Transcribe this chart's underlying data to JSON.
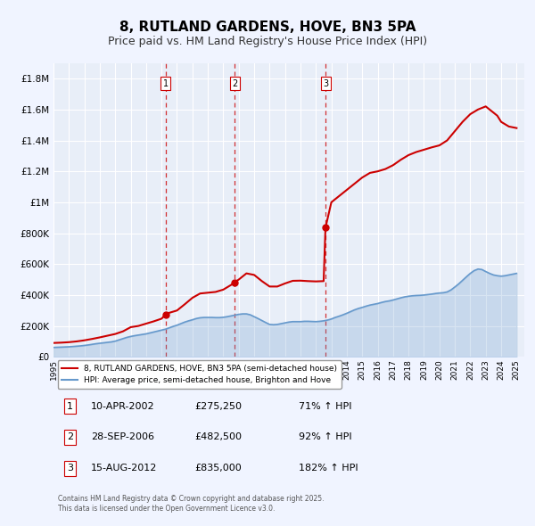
{
  "title": "8, RUTLAND GARDENS, HOVE, BN3 5PA",
  "subtitle": "Price paid vs. HM Land Registry's House Price Index (HPI)",
  "title_fontsize": 11,
  "subtitle_fontsize": 9,
  "bg_color": "#f0f4ff",
  "plot_bg_color": "#e8eef8",
  "grid_color": "#ffffff",
  "ylim": [
    0,
    1900000
  ],
  "xlim_start": 1995.0,
  "xlim_end": 2025.5,
  "ytick_labels": [
    "£0",
    "£200K",
    "£400K",
    "£600K",
    "£800K",
    "£1M",
    "£1.2M",
    "£1.4M",
    "£1.6M",
    "£1.8M"
  ],
  "ytick_values": [
    0,
    200000,
    400000,
    600000,
    800000,
    1000000,
    1200000,
    1400000,
    1600000,
    1800000
  ],
  "property_color": "#cc0000",
  "hpi_color": "#6699cc",
  "sale_marker_color": "#cc0000",
  "sale_dates": [
    2002.277,
    2006.744,
    2012.619
  ],
  "sale_prices": [
    275250,
    482500,
    835000
  ],
  "sale_labels": [
    "1",
    "2",
    "3"
  ],
  "dashed_line_color": "#cc0000",
  "legend_label_property": "8, RUTLAND GARDENS, HOVE, BN3 5PA (semi-detached house)",
  "legend_label_hpi": "HPI: Average price, semi-detached house, Brighton and Hove",
  "table_rows": [
    [
      "1",
      "10-APR-2002",
      "£275,250",
      "71% ↑ HPI"
    ],
    [
      "2",
      "28-SEP-2006",
      "£482,500",
      "92% ↑ HPI"
    ],
    [
      "3",
      "15-AUG-2012",
      "£835,000",
      "182% ↑ HPI"
    ]
  ],
  "footnote": "Contains HM Land Registry data © Crown copyright and database right 2025.\nThis data is licensed under the Open Government Licence v3.0.",
  "hpi_data": {
    "years": [
      1995.0,
      1995.25,
      1995.5,
      1995.75,
      1996.0,
      1996.25,
      1996.5,
      1996.75,
      1997.0,
      1997.25,
      1997.5,
      1997.75,
      1998.0,
      1998.25,
      1998.5,
      1998.75,
      1999.0,
      1999.25,
      1999.5,
      1999.75,
      2000.0,
      2000.25,
      2000.5,
      2000.75,
      2001.0,
      2001.25,
      2001.5,
      2001.75,
      2002.0,
      2002.25,
      2002.5,
      2002.75,
      2003.0,
      2003.25,
      2003.5,
      2003.75,
      2004.0,
      2004.25,
      2004.5,
      2004.75,
      2005.0,
      2005.25,
      2005.5,
      2005.75,
      2006.0,
      2006.25,
      2006.5,
      2006.75,
      2007.0,
      2007.25,
      2007.5,
      2007.75,
      2008.0,
      2008.25,
      2008.5,
      2008.75,
      2009.0,
      2009.25,
      2009.5,
      2009.75,
      2010.0,
      2010.25,
      2010.5,
      2010.75,
      2011.0,
      2011.25,
      2011.5,
      2011.75,
      2012.0,
      2012.25,
      2012.5,
      2012.75,
      2013.0,
      2013.25,
      2013.5,
      2013.75,
      2014.0,
      2014.25,
      2014.5,
      2014.75,
      2015.0,
      2015.25,
      2015.5,
      2015.75,
      2016.0,
      2016.25,
      2016.5,
      2016.75,
      2017.0,
      2017.25,
      2017.5,
      2017.75,
      2018.0,
      2018.25,
      2018.5,
      2018.75,
      2019.0,
      2019.25,
      2019.5,
      2019.75,
      2020.0,
      2020.25,
      2020.5,
      2020.75,
      2021.0,
      2021.25,
      2021.5,
      2021.75,
      2022.0,
      2022.25,
      2022.5,
      2022.75,
      2023.0,
      2023.25,
      2023.5,
      2023.75,
      2024.0,
      2024.25,
      2024.5,
      2024.75,
      2025.0
    ],
    "values": [
      61000,
      62000,
      63000,
      64000,
      65000,
      67000,
      69000,
      71000,
      74000,
      77000,
      81000,
      85000,
      88000,
      91000,
      94000,
      97000,
      102000,
      110000,
      118000,
      126000,
      132000,
      137000,
      141000,
      145000,
      149000,
      155000,
      161000,
      167000,
      173000,
      179000,
      188000,
      197000,
      205000,
      215000,
      225000,
      233000,
      240000,
      248000,
      253000,
      255000,
      255000,
      255000,
      254000,
      254000,
      256000,
      260000,
      265000,
      270000,
      275000,
      278000,
      278000,
      272000,
      260000,
      248000,
      235000,
      222000,
      210000,
      208000,
      210000,
      215000,
      220000,
      225000,
      228000,
      228000,
      228000,
      230000,
      230000,
      229000,
      228000,
      230000,
      233000,
      238000,
      245000,
      255000,
      263000,
      272000,
      282000,
      293000,
      304000,
      313000,
      320000,
      328000,
      335000,
      340000,
      345000,
      352000,
      358000,
      362000,
      368000,
      375000,
      382000,
      388000,
      392000,
      395000,
      397000,
      398000,
      400000,
      403000,
      406000,
      410000,
      413000,
      415000,
      420000,
      433000,
      452000,
      472000,
      495000,
      518000,
      540000,
      558000,
      568000,
      565000,
      552000,
      540000,
      530000,
      525000,
      522000,
      525000,
      530000,
      535000,
      540000
    ]
  },
  "property_data": {
    "years": [
      1995.0,
      1995.5,
      1996.0,
      1996.5,
      1997.0,
      1997.5,
      1998.0,
      1998.5,
      1999.0,
      1999.5,
      2000.0,
      2000.5,
      2001.0,
      2001.5,
      2002.0,
      2002.277,
      2002.5,
      2003.0,
      2003.5,
      2004.0,
      2004.5,
      2005.0,
      2005.5,
      2006.0,
      2006.5,
      2006.744,
      2007.0,
      2007.5,
      2008.0,
      2008.5,
      2009.0,
      2009.5,
      2010.0,
      2010.5,
      2011.0,
      2011.5,
      2012.0,
      2012.5,
      2012.619,
      2013.0,
      2013.5,
      2014.0,
      2014.5,
      2015.0,
      2015.5,
      2016.0,
      2016.5,
      2017.0,
      2017.5,
      2018.0,
      2018.5,
      2019.0,
      2019.5,
      2020.0,
      2020.5,
      2021.0,
      2021.5,
      2022.0,
      2022.5,
      2023.0,
      2023.5,
      2023.75,
      2024.0,
      2024.5,
      2025.0
    ],
    "values": [
      90000,
      92000,
      95000,
      100000,
      107000,
      116000,
      126000,
      137000,
      148000,
      165000,
      192000,
      200000,
      215000,
      230000,
      247000,
      275250,
      285000,
      300000,
      340000,
      382000,
      410000,
      415000,
      420000,
      435000,
      465000,
      482500,
      500000,
      540000,
      530000,
      490000,
      455000,
      455000,
      475000,
      492000,
      493000,
      490000,
      488000,
      490000,
      835000,
      1000000,
      1040000,
      1080000,
      1120000,
      1160000,
      1190000,
      1200000,
      1215000,
      1240000,
      1275000,
      1305000,
      1325000,
      1340000,
      1355000,
      1368000,
      1400000,
      1460000,
      1520000,
      1570000,
      1600000,
      1620000,
      1580000,
      1560000,
      1520000,
      1490000,
      1480000
    ]
  }
}
